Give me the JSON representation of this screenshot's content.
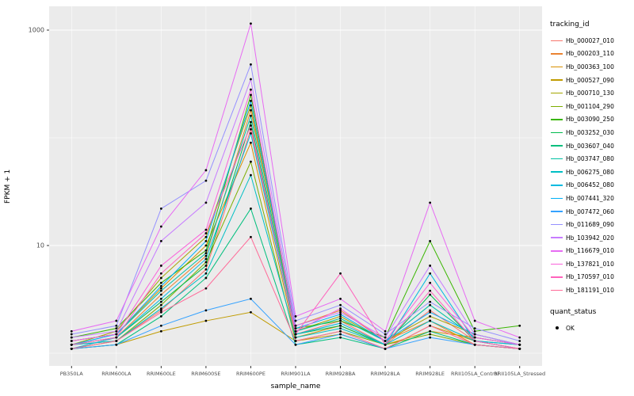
{
  "axes": {
    "y_title": "FPKM + 1",
    "x_title": "sample_name",
    "y_ticks": [
      {
        "label": "1000",
        "value": 1000
      },
      {
        "label": "10",
        "value": 10
      }
    ],
    "y_minor": [
      1,
      100
    ]
  },
  "legend": {
    "tracking_title": "tracking_id",
    "quant_title": "quant_status",
    "quant_ok_label": "OK"
  },
  "colors": {
    "panel_bg": "#EBEBEB",
    "grid_major": "#FFFFFF",
    "tick_mark": "#333333",
    "tick_text": "#4D4D4D",
    "point": "#000000"
  },
  "chart_data": {
    "type": "line",
    "title": "",
    "xlabel": "sample_name",
    "ylabel": "FPKM + 1",
    "y_scale": "log10",
    "ylim": [
      1,
      1300
    ],
    "grid": true,
    "legend_position": "right",
    "point_shape_legend": {
      "title": "quant_status",
      "entries": [
        "OK"
      ]
    },
    "categories": [
      "PB350LA",
      "RRIM600LA",
      "RRIM600LE",
      "RRIM600SE",
      "RRIM600PE",
      "RRIM901LA",
      "RRIM928BA",
      "RRIM928LA",
      "RRIM928LE",
      "RRII105LA_Control",
      "RRII105LA_Stressed"
    ],
    "series": [
      {
        "name": "Hb_000027_010",
        "color": "#F8766D",
        "values": [
          1.2,
          1.3,
          2.5,
          6,
          120,
          1.5,
          2.0,
          1.2,
          2.5,
          1.3,
          1.1
        ]
      },
      {
        "name": "Hb_000203_110",
        "color": "#EA8331",
        "values": [
          1.1,
          1.4,
          3.5,
          8,
          180,
          1.8,
          2.5,
          1.3,
          2.0,
          1.2,
          1.1
        ]
      },
      {
        "name": "Hb_000363_100",
        "color": "#D89000",
        "values": [
          1.3,
          1.5,
          4,
          10,
          90,
          1.4,
          1.8,
          1.2,
          1.6,
          1.4,
          1.2
        ]
      },
      {
        "name": "Hb_000527_090",
        "color": "#C09B00",
        "values": [
          1.1,
          1.2,
          1.6,
          2.0,
          2.4,
          1.3,
          1.5,
          1.1,
          1.8,
          1.3,
          1.1
        ]
      },
      {
        "name": "Hb_000710_130",
        "color": "#A3A500",
        "values": [
          1.2,
          1.6,
          5,
          12,
          200,
          1.6,
          2.2,
          1.3,
          2.2,
          1.5,
          1.2
        ]
      },
      {
        "name": "Hb_001104_290",
        "color": "#7CAE00",
        "values": [
          1.1,
          1.3,
          2.8,
          7,
          60,
          1.3,
          1.6,
          1.2,
          1.5,
          1.2,
          1.1
        ]
      },
      {
        "name": "Hb_003090_250",
        "color": "#39B600",
        "values": [
          1.4,
          1.7,
          4.5,
          9,
          250,
          1.7,
          2.0,
          1.4,
          11,
          1.6,
          1.8
        ]
      },
      {
        "name": "Hb_003252_030",
        "color": "#00BB4E",
        "values": [
          1.2,
          1.4,
          3.0,
          6.5,
          140,
          1.5,
          1.8,
          1.2,
          3.5,
          1.3,
          1.2
        ]
      },
      {
        "name": "Hb_003607_040",
        "color": "#00BF7D",
        "values": [
          1.1,
          1.2,
          2.2,
          5,
          22,
          1.2,
          1.4,
          1.1,
          1.6,
          1.2,
          1.1
        ]
      },
      {
        "name": "Hb_003747_080",
        "color": "#00C1A3",
        "values": [
          1.3,
          1.5,
          3.8,
          8.5,
          160,
          1.6,
          2.1,
          1.3,
          2.8,
          1.4,
          1.2
        ]
      },
      {
        "name": "Hb_006275_080",
        "color": "#00BFC4",
        "values": [
          1.2,
          1.3,
          2.6,
          5.5,
          45,
          1.4,
          1.7,
          1.2,
          2.0,
          1.3,
          1.1
        ]
      },
      {
        "name": "Hb_006452_080",
        "color": "#00BAE0",
        "values": [
          1.1,
          1.4,
          3.2,
          7.5,
          110,
          1.5,
          1.9,
          1.2,
          5.5,
          1.3,
          1.2
        ]
      },
      {
        "name": "Hb_007441_320",
        "color": "#00B0F6",
        "values": [
          1.2,
          1.5,
          4.2,
          11,
          220,
          1.7,
          2.3,
          1.3,
          2.4,
          1.5,
          1.2
        ]
      },
      {
        "name": "Hb_007472_060",
        "color": "#35A2FF",
        "values": [
          1.1,
          1.2,
          1.8,
          2.5,
          3.2,
          1.2,
          1.5,
          1.1,
          1.4,
          1.2,
          1.1
        ]
      },
      {
        "name": "Hb_011689_090",
        "color": "#9590FF",
        "values": [
          1.5,
          1.8,
          22,
          40,
          480,
          2.0,
          2.8,
          1.5,
          3.0,
          1.7,
          1.3
        ]
      },
      {
        "name": "Hb_103942_020",
        "color": "#C77CFF",
        "values": [
          1.4,
          1.6,
          11,
          25,
          350,
          1.8,
          2.4,
          1.4,
          6.5,
          1.5,
          1.2
        ]
      },
      {
        "name": "Hb_116679_010",
        "color": "#E76BF3",
        "values": [
          1.6,
          2.0,
          15,
          50,
          1150,
          2.2,
          3.2,
          1.6,
          25,
          2.0,
          1.4
        ]
      },
      {
        "name": "Hb_137821_010",
        "color": "#FA62DB",
        "values": [
          1.3,
          1.5,
          6.5,
          14,
          280,
          1.6,
          2.6,
          1.3,
          4.5,
          1.4,
          1.2
        ]
      },
      {
        "name": "Hb_170597_010",
        "color": "#FF62BC",
        "values": [
          1.2,
          1.4,
          5.5,
          13,
          130,
          1.5,
          5.5,
          1.2,
          3.8,
          1.3,
          1.1
        ]
      },
      {
        "name": "Hb_181191_010",
        "color": "#FF6A98",
        "values": [
          1.1,
          1.3,
          2.4,
          4,
          12,
          1.3,
          1.6,
          1.1,
          1.8,
          1.2,
          1.1
        ]
      }
    ]
  }
}
